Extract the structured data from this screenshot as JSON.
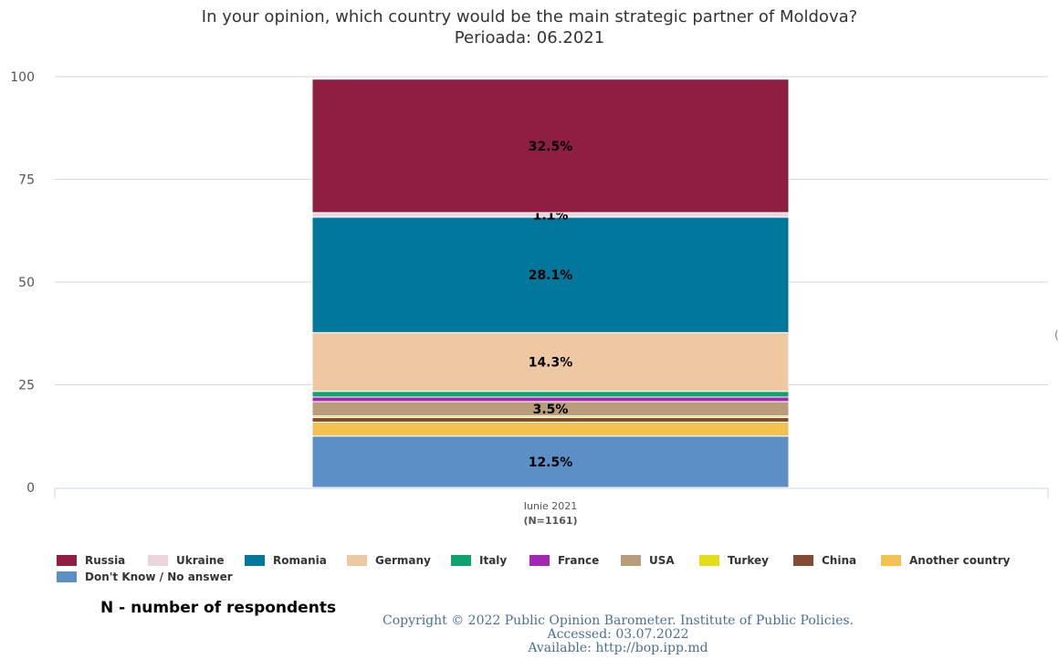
{
  "chart_data": {
    "type": "bar",
    "stacked": true,
    "title": "In your opinion, which country would be the main strategic partner of Moldova?",
    "subtitle": "Perioada: 06.2021",
    "categories": [
      "Iunie 2021"
    ],
    "category_sublabels": [
      "(N=1161)"
    ],
    "ylim": [
      0,
      100
    ],
    "yticks": [
      0,
      25,
      50,
      75,
      100
    ],
    "grid": true,
    "legend_position": "bottom",
    "series": [
      {
        "name": "Russia",
        "values": [
          32.5
        ],
        "color": "#8e1f40",
        "label": "32.5%"
      },
      {
        "name": "Ukraine",
        "values": [
          1.1
        ],
        "color": "#ebd5da",
        "label": "1.1%"
      },
      {
        "name": "Romania",
        "values": [
          28.1
        ],
        "color": "#00779b",
        "label": "28.1%"
      },
      {
        "name": "Germany",
        "values": [
          14.3
        ],
        "color": "#eec8a3",
        "label": "14.3%"
      },
      {
        "name": "Italy",
        "values": [
          1.4
        ],
        "color": "#0fa36e",
        "label": ""
      },
      {
        "name": "France",
        "values": [
          1.1
        ],
        "color": "#a626b4",
        "label": ""
      },
      {
        "name": "USA",
        "values": [
          3.5
        ],
        "color": "#b99c7a",
        "label": "3.5%"
      },
      {
        "name": "Turkey",
        "values": [
          0.4
        ],
        "color": "#e2dc1b",
        "label": ""
      },
      {
        "name": "China",
        "values": [
          1.1
        ],
        "color": "#864a32",
        "label": ""
      },
      {
        "name": "Another country",
        "values": [
          3.4
        ],
        "color": "#f3c150",
        "label": ""
      },
      {
        "name": "Don't Know / No answer",
        "values": [
          12.5
        ],
        "color": "#5b8fc5",
        "label": "12.5%"
      }
    ]
  },
  "footnote": "N - number of respondents",
  "credits": {
    "line1": "Copyright © 2022 Public Opinion Barometer. Institute of Public Policies.",
    "line2": "Accessed: 03.07.2022",
    "line3": "Available: http://bop.ipp.md"
  },
  "edge_mark": "("
}
